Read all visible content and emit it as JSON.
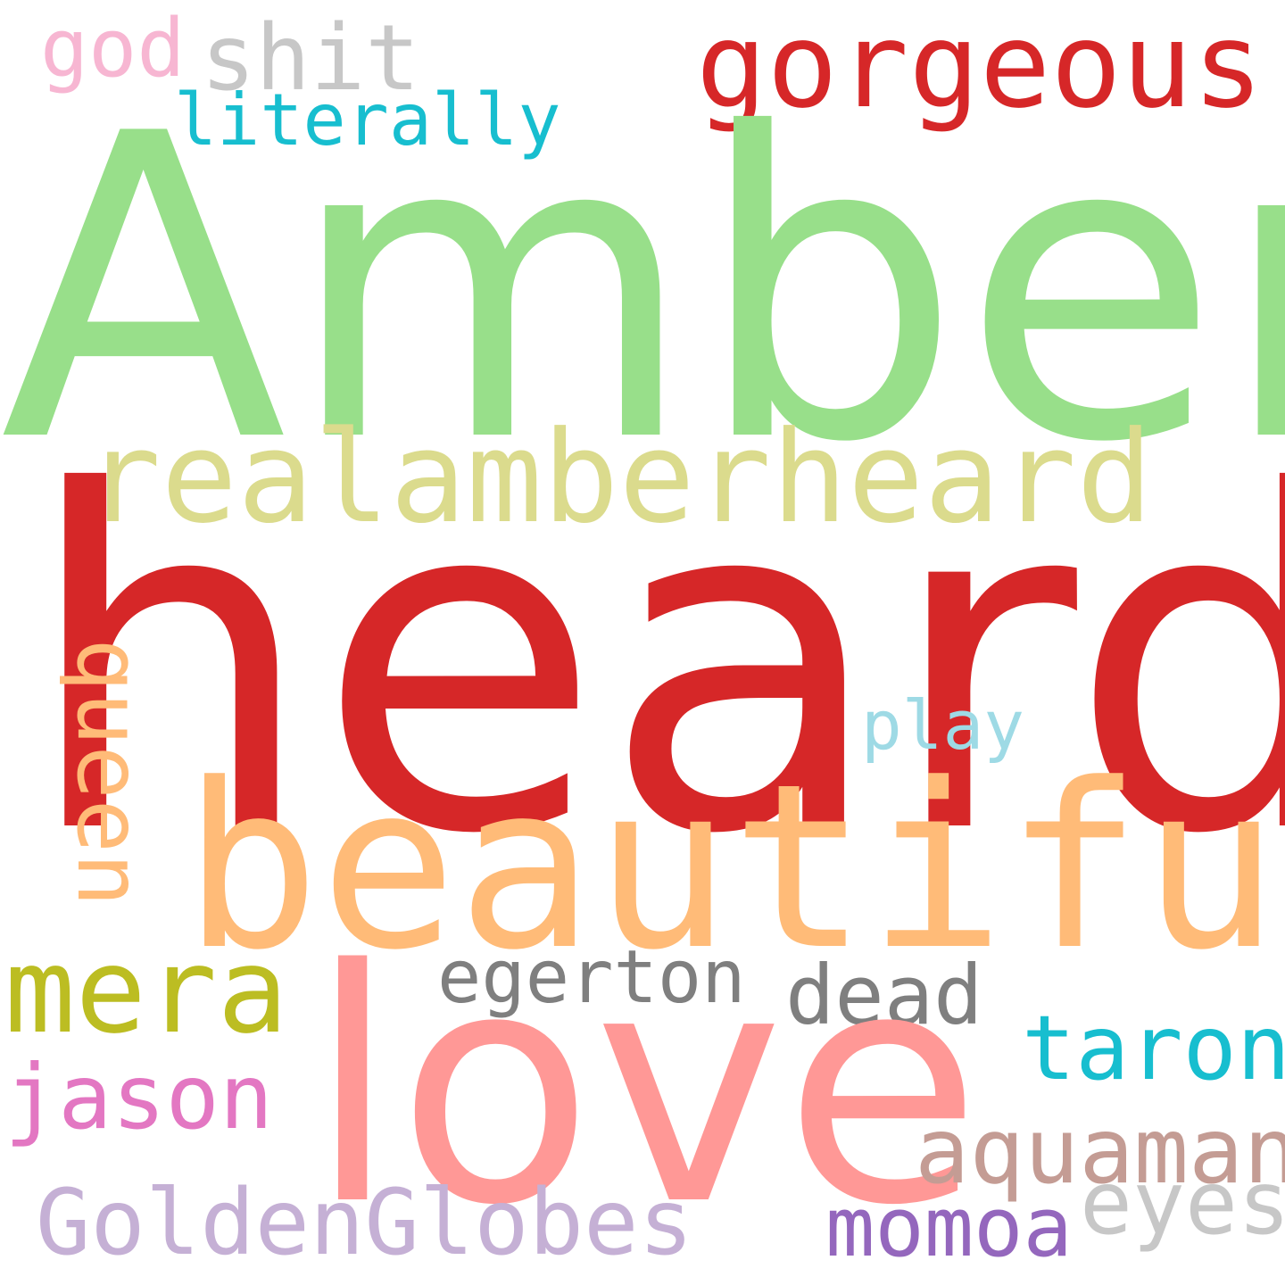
{
  "words": {
    "amber": {
      "text": "Amber",
      "color": "#98df8a"
    },
    "heard": {
      "text": "heard",
      "color": "#d62728"
    },
    "realamber": {
      "text": "realamberheard",
      "color": "#dbdb8d"
    },
    "beautiful": {
      "text": "beautiful",
      "color": "#ffbb78"
    },
    "love": {
      "text": "love",
      "color": "#ff9896"
    },
    "gorgeous": {
      "text": "gorgeous",
      "color": "#d62728"
    },
    "shit": {
      "text": "shit",
      "color": "#c7c7c7"
    },
    "god": {
      "text": "god",
      "color": "#f7b6d2"
    },
    "literally": {
      "text": "literally",
      "color": "#17becf"
    },
    "mera": {
      "text": "mera",
      "color": "#bcbd22"
    },
    "egerton": {
      "text": "egerton",
      "color": "#7f7f7f"
    },
    "dead": {
      "text": "dead",
      "color": "#7f7f7f"
    },
    "taron": {
      "text": "taron",
      "color": "#17becf"
    },
    "jason": {
      "text": "jason",
      "color": "#e377c2"
    },
    "aquaman": {
      "text": "aquaman",
      "color": "#c49c94"
    },
    "eyes": {
      "text": "eyes",
      "color": "#c7c7c7"
    },
    "momoa": {
      "text": "momoa",
      "color": "#9467bd"
    },
    "goldenglobes": {
      "text": "GoldenGlobes",
      "color": "#c5b0d5"
    },
    "play": {
      "text": "play",
      "color": "#9edae5"
    },
    "queen": {
      "text": "queen",
      "color": "#ffbb78"
    }
  }
}
